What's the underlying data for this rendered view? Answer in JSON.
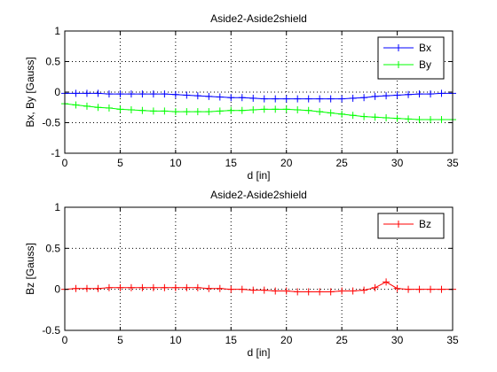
{
  "chart_data": [
    {
      "type": "line",
      "title": "Aside2-Aside2shield",
      "xlabel": "d [in]",
      "ylabel": "Bx, By [Gauss]",
      "xlim": [
        0,
        35
      ],
      "ylim": [
        -1,
        1
      ],
      "xticks": [
        0,
        5,
        10,
        15,
        20,
        25,
        30,
        35
      ],
      "yticks": [
        -1,
        -0.5,
        0,
        0.5,
        1
      ],
      "xtick_labels": [
        "0",
        "5",
        "10",
        "15",
        "20",
        "25",
        "30",
        "35"
      ],
      "ytick_labels": [
        "-1",
        "-0.5",
        "0",
        "0.5",
        "1"
      ],
      "grid": true,
      "legend_position": "top-right",
      "x": [
        0,
        1,
        2,
        3,
        4,
        5,
        6,
        7,
        8,
        9,
        10,
        11,
        12,
        13,
        14,
        15,
        16,
        17,
        18,
        19,
        20,
        21,
        22,
        23,
        24,
        25,
        26,
        27,
        28,
        29,
        30,
        31,
        32,
        33,
        34,
        35
      ],
      "series": [
        {
          "name": "Bx",
          "color": "#0000ff",
          "marker": "plus",
          "values": [
            -0.02,
            -0.02,
            -0.02,
            -0.02,
            -0.03,
            -0.03,
            -0.03,
            -0.03,
            -0.03,
            -0.03,
            -0.04,
            -0.05,
            -0.06,
            -0.07,
            -0.08,
            -0.09,
            -0.09,
            -0.1,
            -0.11,
            -0.11,
            -0.11,
            -0.11,
            -0.11,
            -0.11,
            -0.11,
            -0.11,
            -0.1,
            -0.09,
            -0.07,
            -0.06,
            -0.05,
            -0.04,
            -0.03,
            -0.03,
            -0.02,
            -0.02
          ]
        },
        {
          "name": "By",
          "color": "#00ff00",
          "marker": "plus",
          "values": [
            -0.19,
            -0.21,
            -0.23,
            -0.25,
            -0.26,
            -0.28,
            -0.29,
            -0.3,
            -0.31,
            -0.31,
            -0.32,
            -0.32,
            -0.32,
            -0.32,
            -0.31,
            -0.3,
            -0.3,
            -0.29,
            -0.28,
            -0.28,
            -0.28,
            -0.29,
            -0.3,
            -0.32,
            -0.34,
            -0.36,
            -0.38,
            -0.4,
            -0.41,
            -0.42,
            -0.43,
            -0.44,
            -0.45,
            -0.45,
            -0.45,
            -0.45
          ]
        }
      ]
    },
    {
      "type": "line",
      "title": "Aside2-Aside2shield",
      "xlabel": "d [in]",
      "ylabel": "Bz [Gauss]",
      "xlim": [
        0,
        35
      ],
      "ylim": [
        -0.5,
        1
      ],
      "xticks": [
        0,
        5,
        10,
        15,
        20,
        25,
        30,
        35
      ],
      "yticks": [
        -0.5,
        0,
        0.5,
        1
      ],
      "xtick_labels": [
        "0",
        "5",
        "10",
        "15",
        "20",
        "25",
        "30",
        "35"
      ],
      "ytick_labels": [
        "-0.5",
        "0",
        "0.5",
        "1"
      ],
      "grid": true,
      "legend_position": "top-right",
      "x": [
        0,
        1,
        2,
        3,
        4,
        5,
        6,
        7,
        8,
        9,
        10,
        11,
        12,
        13,
        14,
        15,
        16,
        17,
        18,
        19,
        20,
        21,
        22,
        23,
        24,
        25,
        26,
        27,
        28,
        29,
        30,
        31,
        32,
        33,
        34,
        35
      ],
      "series": [
        {
          "name": "Bz",
          "color": "#ff0000",
          "marker": "plus",
          "values": [
            0.0,
            0.01,
            0.01,
            0.01,
            0.02,
            0.02,
            0.02,
            0.02,
            0.02,
            0.02,
            0.02,
            0.02,
            0.02,
            0.01,
            0.01,
            0.0,
            0.0,
            -0.01,
            -0.01,
            -0.02,
            -0.02,
            -0.03,
            -0.03,
            -0.03,
            -0.03,
            -0.02,
            -0.02,
            -0.01,
            0.02,
            0.09,
            0.01,
            0.0,
            0.0,
            0.0,
            0.0,
            0.0
          ]
        }
      ]
    }
  ]
}
